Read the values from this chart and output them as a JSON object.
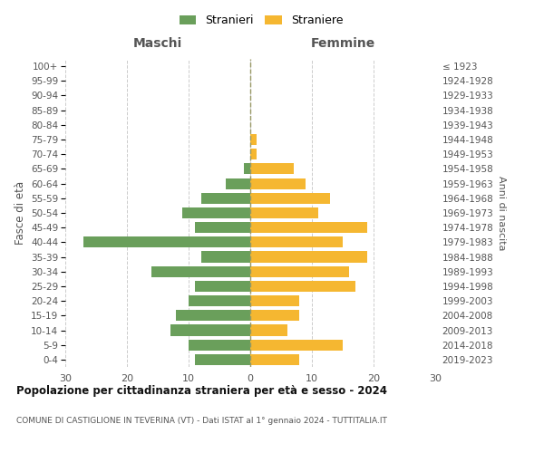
{
  "age_groups": [
    "0-4",
    "5-9",
    "10-14",
    "15-19",
    "20-24",
    "25-29",
    "30-34",
    "35-39",
    "40-44",
    "45-49",
    "50-54",
    "55-59",
    "60-64",
    "65-69",
    "70-74",
    "75-79",
    "80-84",
    "85-89",
    "90-94",
    "95-99",
    "100+"
  ],
  "birth_years": [
    "2019-2023",
    "2014-2018",
    "2009-2013",
    "2004-2008",
    "1999-2003",
    "1994-1998",
    "1989-1993",
    "1984-1988",
    "1979-1983",
    "1974-1978",
    "1969-1973",
    "1964-1968",
    "1959-1963",
    "1954-1958",
    "1949-1953",
    "1944-1948",
    "1939-1943",
    "1934-1938",
    "1929-1933",
    "1924-1928",
    "≤ 1923"
  ],
  "maschi": [
    9,
    10,
    13,
    12,
    10,
    9,
    16,
    8,
    27,
    9,
    11,
    8,
    4,
    1,
    0,
    0,
    0,
    0,
    0,
    0,
    0
  ],
  "femmine": [
    8,
    15,
    6,
    8,
    8,
    17,
    16,
    19,
    15,
    19,
    11,
    13,
    9,
    7,
    1,
    1,
    0,
    0,
    0,
    0,
    0
  ],
  "color_maschi": "#6a9f5b",
  "color_femmine": "#f5b731",
  "grid_color": "#cccccc",
  "center_line_color": "#999966",
  "xlim": 30,
  "title": "Popolazione per cittadinanza straniera per età e sesso - 2024",
  "subtitle": "COMUNE DI CASTIGLIONE IN TEVERINA (VT) - Dati ISTAT al 1° gennaio 2024 - TUTTITALIA.IT",
  "ylabel_left": "Fasce di età",
  "ylabel_right": "Anni di nascita",
  "xlabel_maschi": "Maschi",
  "xlabel_femmine": "Femmine",
  "legend_stranieri": "Stranieri",
  "legend_straniere": "Straniere"
}
